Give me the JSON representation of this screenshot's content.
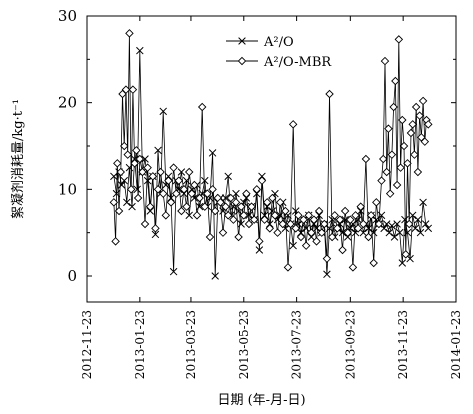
{
  "chart_data": {
    "type": "line",
    "xlabel": "日期 (年-月-日)",
    "ylabel": "絮凝剂消耗量/kg·t⁻¹",
    "x_type": "date",
    "xlim": [
      "2012-11-23",
      "2014-01-23"
    ],
    "ylim": [
      -3,
      30
    ],
    "y_ticks": [
      0,
      10,
      20,
      30
    ],
    "x_tick_labels": [
      "2012-11-23",
      "2013-01-23",
      "2013-03-23",
      "2013-05-23",
      "2013-07-23",
      "2013-09-23",
      "2013-11-23",
      "2014-01-23"
    ],
    "legend_position": "top-right",
    "grid": false,
    "series": [
      {
        "name": "A²/O",
        "marker": "x-cross",
        "points": [
          [
            "2012-12-24",
            11.5
          ],
          [
            "2012-12-27",
            9.5
          ],
          [
            "2012-12-30",
            12.0
          ],
          [
            "2013-01-02",
            10.5
          ],
          [
            "2013-01-05",
            11.0
          ],
          [
            "2013-01-08",
            8.5
          ],
          [
            "2013-01-11",
            12.5
          ],
          [
            "2013-01-14",
            8.0
          ],
          [
            "2013-01-17",
            13.5
          ],
          [
            "2013-01-20",
            10.0
          ],
          [
            "2013-01-23",
            26.0
          ],
          [
            "2013-01-26",
            12.0
          ],
          [
            "2013-01-29",
            13.5
          ],
          [
            "2013-02-01",
            11.0
          ],
          [
            "2013-02-04",
            7.5
          ],
          [
            "2013-02-07",
            11.5
          ],
          [
            "2013-02-10",
            4.8
          ],
          [
            "2013-02-13",
            14.5
          ],
          [
            "2013-02-16",
            9.5
          ],
          [
            "2013-02-19",
            19.0
          ],
          [
            "2013-02-22",
            10.5
          ],
          [
            "2013-02-25",
            11.5
          ],
          [
            "2013-02-28",
            9.0
          ],
          [
            "2013-03-03",
            0.5
          ],
          [
            "2013-03-06",
            11.0
          ],
          [
            "2013-03-09",
            10.0
          ],
          [
            "2013-03-12",
            12.0
          ],
          [
            "2013-03-15",
            9.5
          ],
          [
            "2013-03-18",
            11.0
          ],
          [
            "2013-03-21",
            7.0
          ],
          [
            "2013-03-24",
            10.0
          ],
          [
            "2013-03-27",
            9.0
          ],
          [
            "2013-03-30",
            10.5
          ],
          [
            "2013-04-02",
            8.0
          ],
          [
            "2013-04-05",
            9.5
          ],
          [
            "2013-04-08",
            11.0
          ],
          [
            "2013-04-11",
            8.0
          ],
          [
            "2013-04-14",
            9.0
          ],
          [
            "2013-04-17",
            14.2
          ],
          [
            "2013-04-20",
            0.0
          ],
          [
            "2013-04-23",
            8.5
          ],
          [
            "2013-04-26",
            9.0
          ],
          [
            "2013-04-29",
            7.5
          ],
          [
            "2013-05-02",
            9.0
          ],
          [
            "2013-05-05",
            11.5
          ],
          [
            "2013-05-08",
            7.0
          ],
          [
            "2013-05-11",
            8.0
          ],
          [
            "2013-05-14",
            9.5
          ],
          [
            "2013-05-17",
            7.5
          ],
          [
            "2013-05-20",
            6.0
          ],
          [
            "2013-05-23",
            8.5
          ],
          [
            "2013-05-26",
            9.0
          ],
          [
            "2013-05-29",
            7.0
          ],
          [
            "2013-06-01",
            8.0
          ],
          [
            "2013-06-04",
            6.5
          ],
          [
            "2013-06-07",
            9.5
          ],
          [
            "2013-06-10",
            3.0
          ],
          [
            "2013-06-13",
            11.5
          ],
          [
            "2013-06-16",
            7.0
          ],
          [
            "2013-06-19",
            8.0
          ],
          [
            "2013-06-22",
            6.0
          ],
          [
            "2013-06-25",
            7.5
          ],
          [
            "2013-06-28",
            9.5
          ],
          [
            "2013-07-01",
            6.5
          ],
          [
            "2013-07-04",
            7.0
          ],
          [
            "2013-07-07",
            8.5
          ],
          [
            "2013-07-10",
            5.5
          ],
          [
            "2013-07-13",
            7.0
          ],
          [
            "2013-07-16",
            6.0
          ],
          [
            "2013-07-19",
            3.5
          ],
          [
            "2013-07-22",
            7.5
          ],
          [
            "2013-07-25",
            6.0
          ],
          [
            "2013-07-28",
            5.0
          ],
          [
            "2013-07-31",
            6.5
          ],
          [
            "2013-08-03",
            5.5
          ],
          [
            "2013-08-06",
            7.0
          ],
          [
            "2013-08-09",
            4.5
          ],
          [
            "2013-08-12",
            6.0
          ],
          [
            "2013-08-15",
            5.5
          ],
          [
            "2013-08-18",
            7.0
          ],
          [
            "2013-08-21",
            5.0
          ],
          [
            "2013-08-24",
            6.0
          ],
          [
            "2013-08-27",
            0.2
          ],
          [
            "2013-08-30",
            5.5
          ],
          [
            "2013-09-02",
            6.5
          ],
          [
            "2013-09-05",
            4.5
          ],
          [
            "2013-09-08",
            5.5
          ],
          [
            "2013-09-11",
            6.0
          ],
          [
            "2013-09-14",
            5.0
          ],
          [
            "2013-09-17",
            6.5
          ],
          [
            "2013-09-20",
            4.5
          ],
          [
            "2013-09-23",
            5.5
          ],
          [
            "2013-09-26",
            6.0
          ],
          [
            "2013-09-29",
            5.0
          ],
          [
            "2013-10-02",
            6.5
          ],
          [
            "2013-10-05",
            7.5
          ],
          [
            "2013-10-08",
            5.0
          ],
          [
            "2013-10-11",
            6.0
          ],
          [
            "2013-10-14",
            5.5
          ],
          [
            "2013-10-17",
            7.0
          ],
          [
            "2013-10-20",
            5.0
          ],
          [
            "2013-10-23",
            6.5
          ],
          [
            "2013-10-26",
            6.0
          ],
          [
            "2013-10-29",
            7.0
          ],
          [
            "2013-11-01",
            5.5
          ],
          [
            "2013-11-04",
            6.0
          ],
          [
            "2013-11-07",
            5.0
          ],
          [
            "2013-11-10",
            5.8
          ],
          [
            "2013-11-13",
            4.5
          ],
          [
            "2013-11-16",
            6.0
          ],
          [
            "2013-11-19",
            5.0
          ],
          [
            "2013-11-22",
            1.5
          ],
          [
            "2013-11-25",
            6.5
          ],
          [
            "2013-11-28",
            5.0
          ],
          [
            "2013-12-01",
            2.0
          ],
          [
            "2013-12-04",
            7.0
          ],
          [
            "2013-12-07",
            5.5
          ],
          [
            "2013-12-10",
            6.5
          ],
          [
            "2013-12-13",
            5.0
          ],
          [
            "2013-12-16",
            8.5
          ],
          [
            "2013-12-19",
            6.0
          ],
          [
            "2013-12-22",
            5.5
          ]
        ]
      },
      {
        "name": "A²/O-MBR",
        "marker": "diamond-open",
        "points": [
          [
            "2012-12-24",
            8.5
          ],
          [
            "2012-12-26",
            4.0
          ],
          [
            "2012-12-28",
            13.0
          ],
          [
            "2012-12-30",
            7.5
          ],
          [
            "2013-01-01",
            12.0
          ],
          [
            "2013-01-03",
            21.0
          ],
          [
            "2013-01-05",
            15.0
          ],
          [
            "2013-01-07",
            21.5
          ],
          [
            "2013-01-09",
            14.0
          ],
          [
            "2013-01-11",
            28.0
          ],
          [
            "2013-01-13",
            10.0
          ],
          [
            "2013-01-15",
            21.5
          ],
          [
            "2013-01-17",
            13.0
          ],
          [
            "2013-01-19",
            14.5
          ],
          [
            "2013-01-21",
            9.0
          ],
          [
            "2013-01-23",
            13.5
          ],
          [
            "2013-01-26",
            12.0
          ],
          [
            "2013-01-29",
            6.0
          ],
          [
            "2013-02-01",
            12.5
          ],
          [
            "2013-02-04",
            8.0
          ],
          [
            "2013-02-07",
            11.5
          ],
          [
            "2013-02-10",
            5.5
          ],
          [
            "2013-02-13",
            10.0
          ],
          [
            "2013-02-16",
            12.0
          ],
          [
            "2013-02-19",
            9.5
          ],
          [
            "2013-02-22",
            7.0
          ],
          [
            "2013-02-25",
            11.0
          ],
          [
            "2013-02-28",
            8.5
          ],
          [
            "2013-03-03",
            12.5
          ],
          [
            "2013-03-06",
            9.5
          ],
          [
            "2013-03-09",
            11.0
          ],
          [
            "2013-03-12",
            7.5
          ],
          [
            "2013-03-15",
            10.0
          ],
          [
            "2013-03-18",
            8.0
          ],
          [
            "2013-03-21",
            12.0
          ],
          [
            "2013-03-24",
            9.5
          ],
          [
            "2013-03-27",
            10.5
          ],
          [
            "2013-03-30",
            7.0
          ],
          [
            "2013-04-02",
            9.0
          ],
          [
            "2013-04-05",
            19.5
          ],
          [
            "2013-04-08",
            8.0
          ],
          [
            "2013-04-11",
            9.5
          ],
          [
            "2013-04-14",
            4.5
          ],
          [
            "2013-04-17",
            10.0
          ],
          [
            "2013-04-20",
            7.5
          ],
          [
            "2013-04-23",
            9.0
          ],
          [
            "2013-04-26",
            8.5
          ],
          [
            "2013-04-29",
            5.0
          ],
          [
            "2013-05-02",
            8.0
          ],
          [
            "2013-05-05",
            7.0
          ],
          [
            "2013-05-08",
            9.0
          ],
          [
            "2013-05-11",
            6.5
          ],
          [
            "2013-05-14",
            8.5
          ],
          [
            "2013-05-17",
            4.5
          ],
          [
            "2013-05-20",
            8.0
          ],
          [
            "2013-05-23",
            7.0
          ],
          [
            "2013-05-26",
            9.5
          ],
          [
            "2013-05-29",
            6.0
          ],
          [
            "2013-06-01",
            8.0
          ],
          [
            "2013-06-04",
            6.5
          ],
          [
            "2013-06-07",
            10.0
          ],
          [
            "2013-06-10",
            4.0
          ],
          [
            "2013-06-13",
            11.0
          ],
          [
            "2013-06-16",
            6.5
          ],
          [
            "2013-06-19",
            8.5
          ],
          [
            "2013-06-22",
            5.5
          ],
          [
            "2013-06-25",
            9.0
          ],
          [
            "2013-06-28",
            7.0
          ],
          [
            "2013-07-01",
            5.0
          ],
          [
            "2013-07-04",
            8.5
          ],
          [
            "2013-07-07",
            6.0
          ],
          [
            "2013-07-10",
            7.5
          ],
          [
            "2013-07-13",
            1.0
          ],
          [
            "2013-07-16",
            6.0
          ],
          [
            "2013-07-19",
            17.5
          ],
          [
            "2013-07-22",
            5.5
          ],
          [
            "2013-07-25",
            7.0
          ],
          [
            "2013-07-28",
            4.5
          ],
          [
            "2013-07-31",
            6.5
          ],
          [
            "2013-08-03",
            3.5
          ],
          [
            "2013-08-06",
            7.0
          ],
          [
            "2013-08-09",
            5.0
          ],
          [
            "2013-08-12",
            6.5
          ],
          [
            "2013-08-15",
            4.0
          ],
          [
            "2013-08-18",
            7.5
          ],
          [
            "2013-08-21",
            5.0
          ],
          [
            "2013-08-24",
            6.0
          ],
          [
            "2013-08-27",
            2.0
          ],
          [
            "2013-08-30",
            21.0
          ],
          [
            "2013-09-02",
            4.5
          ],
          [
            "2013-09-05",
            7.0
          ],
          [
            "2013-09-08",
            5.5
          ],
          [
            "2013-09-11",
            6.5
          ],
          [
            "2013-09-14",
            3.0
          ],
          [
            "2013-09-17",
            7.5
          ],
          [
            "2013-09-20",
            5.0
          ],
          [
            "2013-09-23",
            6.5
          ],
          [
            "2013-09-26",
            1.0
          ],
          [
            "2013-09-29",
            7.0
          ],
          [
            "2013-10-02",
            5.5
          ],
          [
            "2013-10-05",
            8.0
          ],
          [
            "2013-10-08",
            6.0
          ],
          [
            "2013-10-11",
            13.5
          ],
          [
            "2013-10-14",
            4.5
          ],
          [
            "2013-10-17",
            7.0
          ],
          [
            "2013-10-20",
            1.5
          ],
          [
            "2013-10-23",
            8.5
          ],
          [
            "2013-10-26",
            6.0
          ],
          [
            "2013-10-29",
            11.0
          ],
          [
            "2013-10-31",
            13.5
          ],
          [
            "2013-11-02",
            24.8
          ],
          [
            "2013-11-04",
            12.0
          ],
          [
            "2013-11-06",
            17.0
          ],
          [
            "2013-11-08",
            9.5
          ],
          [
            "2013-11-10",
            14.0
          ],
          [
            "2013-11-12",
            19.5
          ],
          [
            "2013-11-14",
            22.5
          ],
          [
            "2013-11-16",
            10.5
          ],
          [
            "2013-11-18",
            27.3
          ],
          [
            "2013-11-20",
            12.5
          ],
          [
            "2013-11-22",
            18.0
          ],
          [
            "2013-11-24",
            15.0
          ],
          [
            "2013-11-26",
            2.5
          ],
          [
            "2013-11-28",
            13.0
          ],
          [
            "2013-11-30",
            6.0
          ],
          [
            "2013-12-02",
            16.5
          ],
          [
            "2013-12-04",
            17.5
          ],
          [
            "2013-12-06",
            14.0
          ],
          [
            "2013-12-08",
            19.5
          ],
          [
            "2013-12-10",
            12.0
          ],
          [
            "2013-12-12",
            18.5
          ],
          [
            "2013-12-14",
            16.0
          ],
          [
            "2013-12-16",
            20.2
          ],
          [
            "2013-12-18",
            15.5
          ],
          [
            "2013-12-20",
            18.0
          ],
          [
            "2013-12-22",
            17.5
          ]
        ]
      }
    ]
  }
}
